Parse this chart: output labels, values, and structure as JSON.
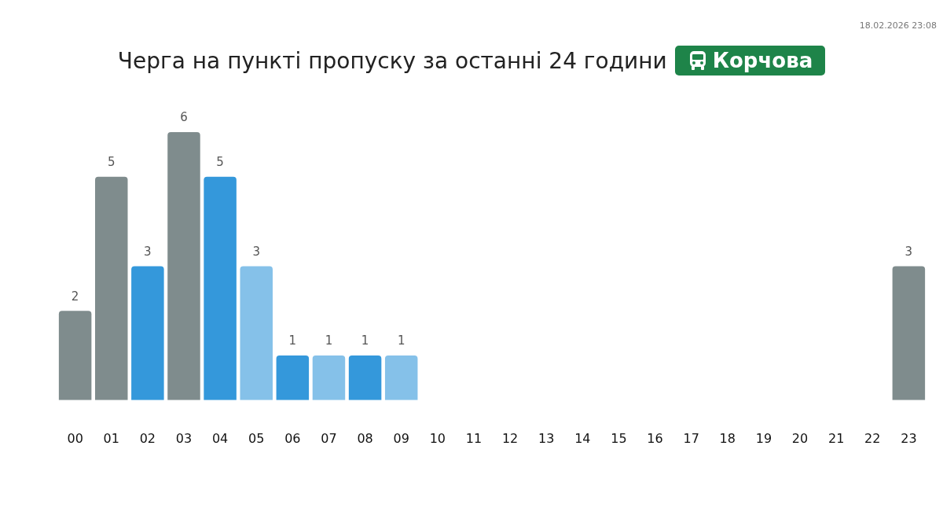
{
  "chart_data": {
    "type": "bar",
    "title": "Черга на пункті пропуску за останні 24 години",
    "subtitle": "Корчова",
    "annotations": [
      "18.02.2026 23:08"
    ],
    "categories": [
      "00",
      "01",
      "02",
      "03",
      "04",
      "05",
      "06",
      "07",
      "08",
      "09",
      "10",
      "11",
      "12",
      "13",
      "14",
      "15",
      "16",
      "17",
      "18",
      "19",
      "20",
      "21",
      "22",
      "23"
    ],
    "values": [
      2,
      5,
      3,
      6,
      5,
      3,
      1,
      1,
      1,
      1,
      null,
      null,
      null,
      null,
      null,
      null,
      null,
      null,
      null,
      null,
      null,
      null,
      null,
      3
    ],
    "colors": [
      "#7f8c8d",
      "#7f8c8d",
      "#3498db",
      "#7f8c8d",
      "#3498db",
      "#85c1e9",
      "#3498db",
      "#85c1e9",
      "#3498db",
      "#85c1e9",
      null,
      null,
      null,
      null,
      null,
      null,
      null,
      null,
      null,
      null,
      null,
      null,
      null,
      "#7f8c8d"
    ],
    "data_labels": true,
    "grid": false,
    "legend": false
  }
}
